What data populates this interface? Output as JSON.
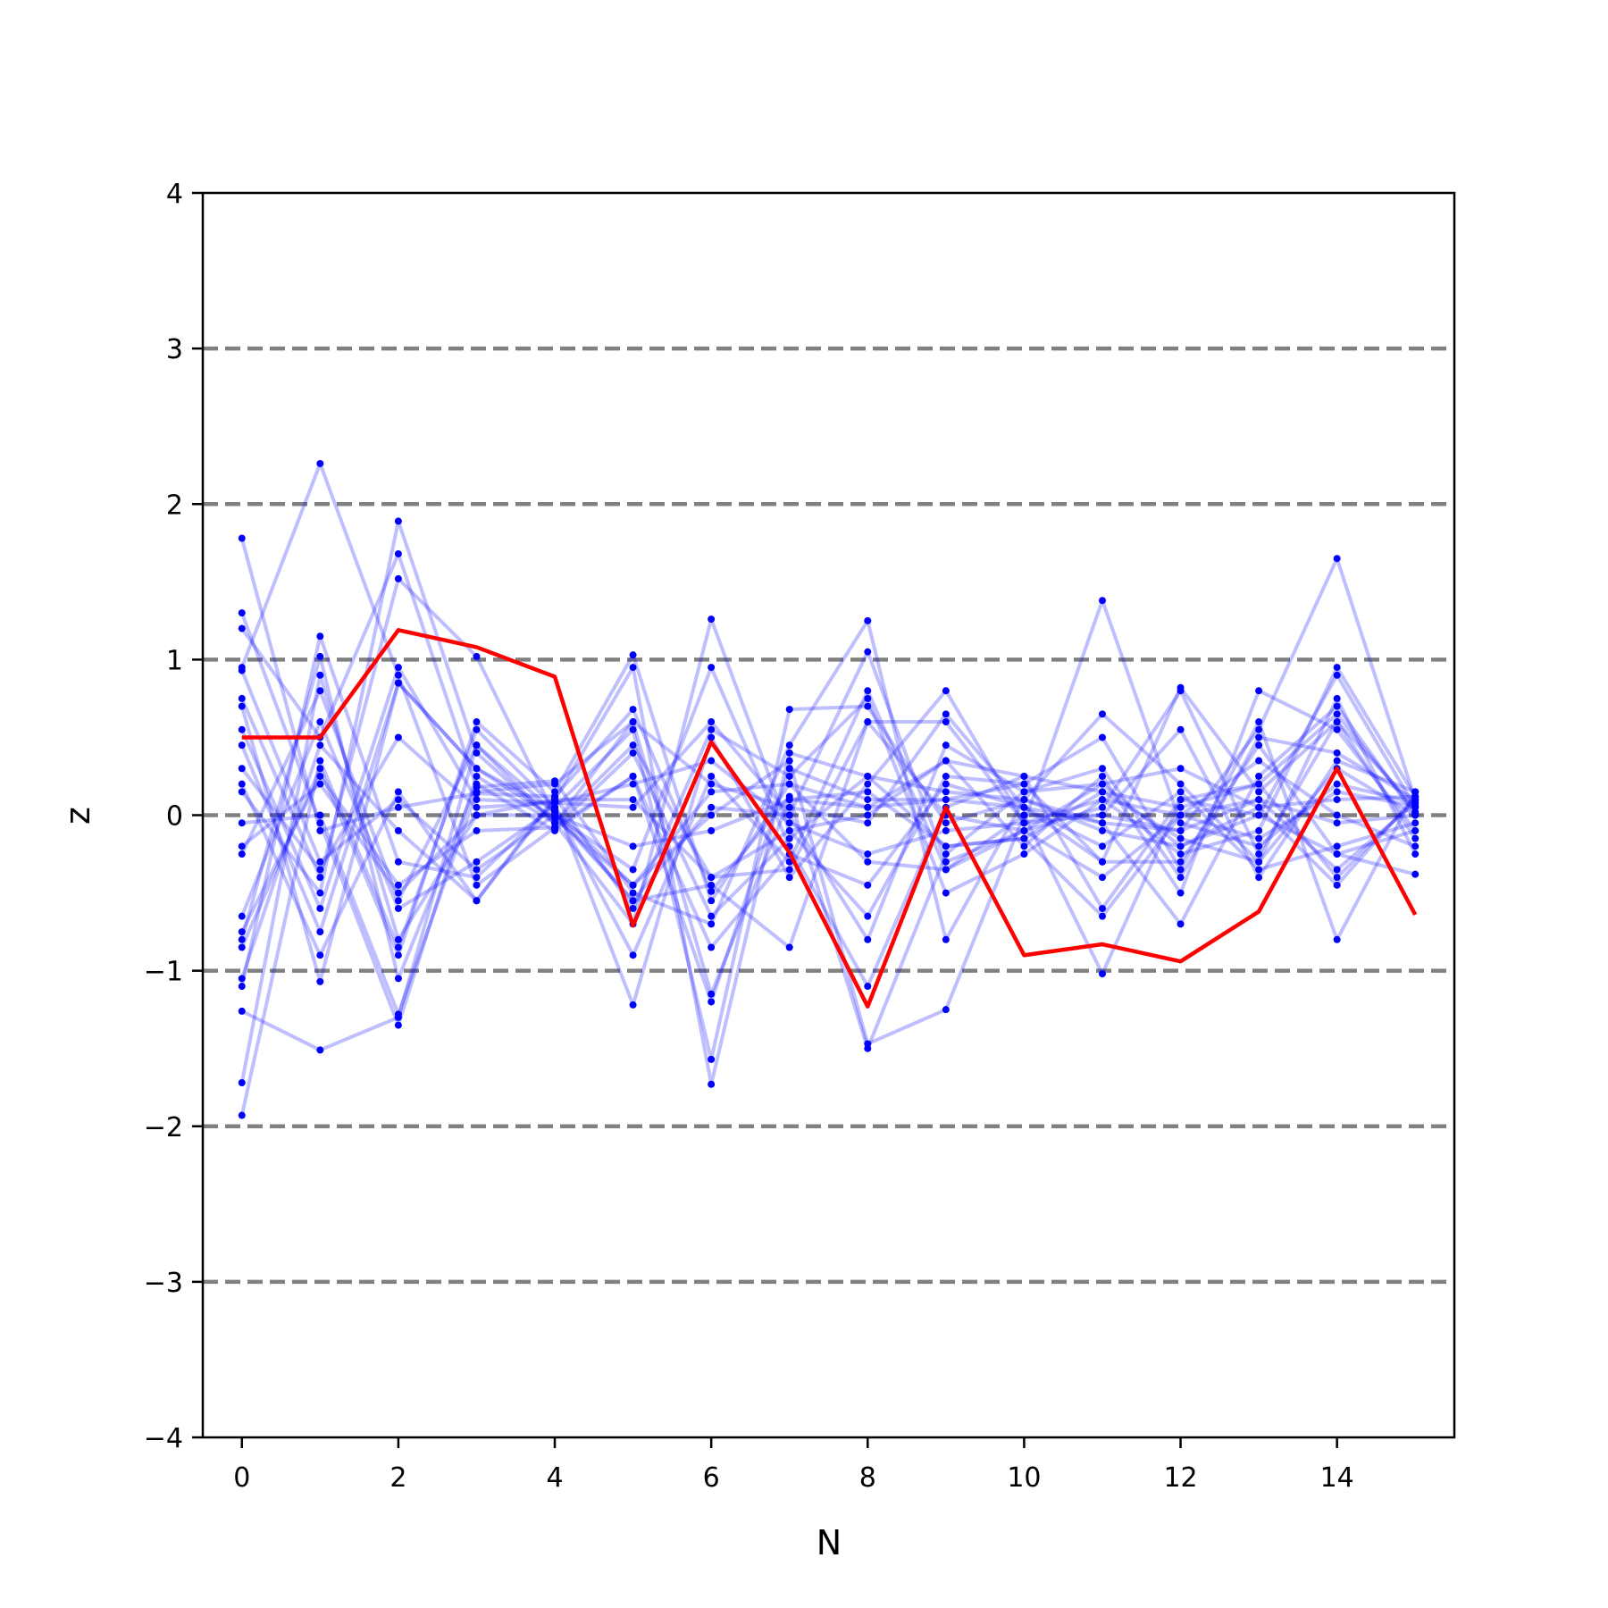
{
  "chart_data": {
    "type": "line",
    "xlabel": "N",
    "ylabel": "z",
    "xlim": [
      -0.5,
      15.5
    ],
    "ylim": [
      -4,
      4
    ],
    "x_ticks": [
      0,
      2,
      4,
      6,
      8,
      10,
      12,
      14
    ],
    "x_tick_labels": [
      "0",
      "2",
      "4",
      "6",
      "8",
      "10",
      "12",
      "14"
    ],
    "y_ticks": [
      -4,
      -3,
      -2,
      -1,
      0,
      1,
      2,
      3,
      4
    ],
    "y_tick_labels": [
      "−4",
      "−3",
      "−2",
      "−1",
      "0",
      "1",
      "2",
      "3",
      "4"
    ],
    "reference_lines": [
      -3,
      -2,
      -1,
      0,
      1,
      2,
      3
    ],
    "reference_line_style": "dashed",
    "grid": false,
    "colors": {
      "highlight": "#ff0000",
      "background_series": "#0000ff",
      "reference": "#808080"
    },
    "x": [
      0,
      1,
      2,
      3,
      4,
      5,
      6,
      7,
      8,
      9,
      10,
      11,
      12,
      13,
      14,
      15
    ],
    "highlighted_series": {
      "values": [
        0.5,
        0.5,
        1.19,
        1.08,
        0.89,
        -0.71,
        0.47,
        -0.24,
        -1.23,
        0.05,
        -0.9,
        -0.83,
        -0.94,
        -0.62,
        0.3,
        -0.64
      ]
    },
    "background_series": [
      [
        1.78,
        -0.1,
        0.05,
        0.14,
        0.12,
        0.68,
        -0.49,
        0.12,
        -1.5,
        -0.25,
        0.15,
        0.2,
        -0.2,
        0.05,
        0.1,
        0.12
      ],
      [
        -1.93,
        0.35,
        -0.85,
        0.55,
        0.05,
        -0.9,
        0.25,
        -0.3,
        0.8,
        -0.35,
        -0.1,
        0.05,
        0.8,
        -0.25,
        0.6,
        0.05
      ],
      [
        1.3,
        -0.05,
        -1.35,
        0.25,
        -0.05,
        0.6,
        0.2,
        0.05,
        -0.05,
        0.65,
        0.05,
        -0.3,
        -0.3,
        0.45,
        -0.25,
        -0.38
      ],
      [
        -1.72,
        0.9,
        -0.8,
        0.0,
        0.1,
        0.95,
        -1.73,
        0.4,
        0.25,
        -0.2,
        -0.15,
        0.15,
        0.05,
        0.2,
        -0.4,
        0.1
      ],
      [
        1.2,
        0.5,
        1.68,
        0.18,
        0.22,
        -0.5,
        -0.7,
        0.45,
        1.25,
        -0.8,
        0.1,
        0.65,
        0.2,
        -0.3,
        0.3,
        0.0
      ],
      [
        -1.26,
        -1.51,
        -1.3,
        0.45,
        0.02,
        -0.55,
        -0.45,
        -0.85,
        0.6,
        0.6,
        -0.05,
        0.0,
        -0.1,
        0.55,
        1.65,
        0.1
      ],
      [
        0.95,
        2.26,
        0.9,
        -0.45,
        -0.08,
        0.25,
        -1.2,
        0.3,
        0.1,
        0.1,
        0.2,
        0.5,
        -0.35,
        0.6,
        -0.8,
        0.15
      ],
      [
        -1.1,
        1.15,
        -0.3,
        -0.4,
        0.08,
        0.05,
        0.6,
        0.0,
        1.05,
        -0.3,
        -0.1,
        -0.4,
        0.0,
        0.35,
        0.0,
        -0.2
      ],
      [
        0.75,
        -0.4,
        1.52,
        1.02,
        0.0,
        -0.35,
        0.95,
        -0.2,
        -1.1,
        0.05,
        0.25,
        -0.6,
        0.1,
        0.0,
        0.9,
        0.05
      ],
      [
        -0.85,
        0.3,
        -0.9,
        0.6,
        0.15,
        1.03,
        -0.55,
        0.2,
        0.05,
        0.35,
        -0.2,
        0.25,
        -0.5,
        0.8,
        0.55,
        -0.1
      ],
      [
        0.7,
        -1.07,
        0.85,
        0.3,
        -0.02,
        -0.45,
        0.0,
        0.35,
        -1.47,
        -1.25,
        0.0,
        0.0,
        0.55,
        -0.4,
        0.35,
        0.15
      ],
      [
        -0.65,
        0.6,
        -0.6,
        -0.3,
        0.05,
        0.55,
        -1.57,
        0.68,
        0.7,
        -0.05,
        0.1,
        -0.05,
        -0.7,
        0.25,
        0.7,
        0.0
      ],
      [
        0.55,
        -0.6,
        0.95,
        0.1,
        0.08,
        -1.22,
        0.5,
        -0.4,
        0.2,
        0.8,
        -0.05,
        1.38,
        -0.05,
        -0.2,
        0.2,
        0.08
      ],
      [
        -0.25,
        0.8,
        -0.55,
        0.45,
        -0.05,
        0.45,
        -0.4,
        -0.1,
        -0.65,
        0.25,
        0.2,
        -0.3,
        0.82,
        0.15,
        0.6,
        -0.15
      ],
      [
        0.2,
        -0.9,
        0.15,
        -0.55,
        0.12,
        -0.6,
        0.55,
        0.25,
        0.75,
        -0.5,
        -0.25,
        0.1,
        -0.25,
        -0.1,
        0.95,
        0.12
      ],
      [
        -0.8,
        1.02,
        -1.05,
        0.2,
        -0.1,
        0.25,
        -0.85,
        -0.25,
        -0.45,
        0.2,
        0.05,
        -0.2,
        0.15,
        -0.35,
        -0.2,
        -0.05
      ],
      [
        0.93,
        -0.3,
        0.1,
        -0.35,
        0.0,
        -0.55,
        0.05,
        0.0,
        -0.8,
        0.45,
        0.15,
        0.3,
        -0.4,
        0.5,
        0.4,
        0.1
      ],
      [
        -0.05,
        0.0,
        -1.28,
        0.15,
        0.2,
        0.6,
        -1.15,
        0.1,
        0.15,
        -0.2,
        -0.15,
        -0.65,
        0.0,
        0.1,
        -0.35,
        0.08
      ],
      [
        0.15,
        -0.5,
        1.89,
        0.4,
        -0.05,
        -0.7,
        1.26,
        -0.1,
        0.0,
        0.35,
        0.25,
        0.15,
        -0.15,
        -0.3,
        0.75,
        -0.25
      ],
      [
        -1.05,
        0.45,
        -0.1,
        -0.55,
        0.1,
        0.1,
        -0.4,
        -0.35,
        0.6,
        0.0,
        -0.1,
        0.2,
        0.3,
        0.05,
        -0.45,
        0.12
      ],
      [
        0.45,
        -0.75,
        0.85,
        0.3,
        0.03,
        -0.45,
        0.15,
        0.2,
        -0.3,
        -0.35,
        0.0,
        -1.02,
        0.1,
        0.2,
        0.65,
        0.02
      ],
      [
        -0.75,
        0.25,
        -0.45,
        -0.1,
        -0.08,
        0.4,
        -0.65,
        -0.15,
        0.25,
        0.15,
        0.1,
        -0.1,
        -0.2,
        0.0,
        -0.25,
        -0.1
      ],
      [
        0.3,
        -0.35,
        0.5,
        0.05,
        0.08,
        0.2,
        0.35,
        -0.05,
        -0.25,
        -0.1,
        -0.05,
        0.1,
        0.0,
        -0.15,
        0.15,
        0.06
      ],
      [
        -0.2,
        0.2,
        -0.5,
        0.0,
        0.0,
        -0.2,
        -0.1,
        0.1,
        0.05,
        0.1,
        0.05,
        -0.05,
        -0.1,
        0.1,
        -0.05,
        0.0
      ]
    ]
  }
}
